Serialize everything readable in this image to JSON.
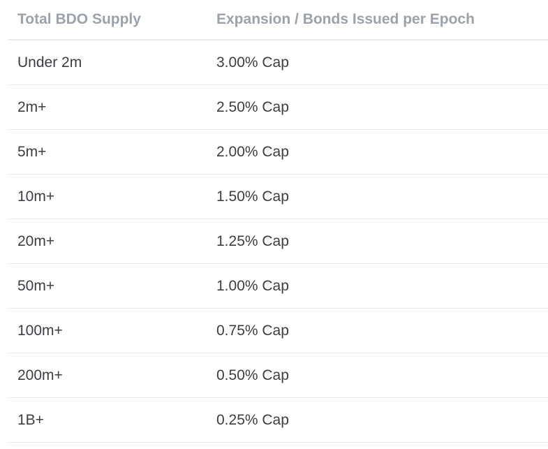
{
  "table": {
    "headers": [
      "Total BDO Supply",
      "Expansion / Bonds Issued per Epoch"
    ],
    "rows": [
      [
        "Under 2m",
        "3.00% Cap"
      ],
      [
        "2m+",
        "2.50% Cap"
      ],
      [
        "5m+",
        "2.00% Cap"
      ],
      [
        "10m+",
        "1.50% Cap"
      ],
      [
        "20m+",
        "1.25% Cap"
      ],
      [
        "50m+",
        "1.00% Cap"
      ],
      [
        "100m+",
        "0.75% Cap"
      ],
      [
        "200m+",
        "0.50% Cap"
      ],
      [
        "1B+",
        "0.25% Cap"
      ]
    ]
  }
}
